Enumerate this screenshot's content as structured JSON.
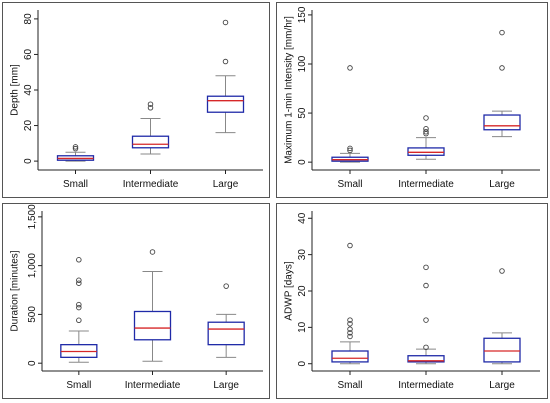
{
  "colors": {
    "box": "#1f2aa8",
    "median": "#d62728",
    "whisker": "#888888",
    "axis": "#222222",
    "panel_border": "#555555",
    "outlier": "#444444"
  },
  "chart_data": [
    {
      "type": "box",
      "ylabel": "Depth [mm]",
      "categories": [
        "Small",
        "Intermediate",
        "Large"
      ],
      "ylim": [
        -5,
        85
      ],
      "yticks": [
        0,
        20,
        40,
        60,
        80
      ],
      "ytick_labels": [
        "0",
        "20",
        "40",
        "60",
        "80"
      ],
      "boxes": [
        {
          "category": "Small",
          "low": 0,
          "q1": 0.5,
          "median": 1.5,
          "q3": 3,
          "high": 5,
          "outliers": [
            7,
            8
          ]
        },
        {
          "category": "Intermediate",
          "low": 4,
          "q1": 7.5,
          "median": 9.5,
          "q3": 14,
          "high": 24,
          "outliers": [
            30,
            32
          ]
        },
        {
          "category": "Large",
          "low": 16,
          "q1": 27.5,
          "median": 34,
          "q3": 36.5,
          "high": 48,
          "outliers": [
            56,
            78
          ]
        }
      ]
    },
    {
      "type": "box",
      "ylabel": "Maximum 1-min Intensity [mm/hr]",
      "categories": [
        "Small",
        "Intermediate",
        "Large"
      ],
      "ylim": [
        -8,
        155
      ],
      "yticks": [
        0,
        50,
        100,
        150
      ],
      "ytick_labels": [
        "0",
        "50",
        "100",
        "150"
      ],
      "boxes": [
        {
          "category": "Small",
          "low": 0,
          "q1": 1,
          "median": 2.5,
          "q3": 5,
          "high": 9,
          "outliers": [
            12,
            14,
            96
          ]
        },
        {
          "category": "Intermediate",
          "low": 3,
          "q1": 7,
          "median": 10,
          "q3": 14.5,
          "high": 25,
          "outliers": [
            29,
            31,
            34,
            45
          ]
        },
        {
          "category": "Large",
          "low": 26,
          "q1": 33,
          "median": 37,
          "q3": 48,
          "high": 52,
          "outliers": [
            96,
            132
          ]
        }
      ]
    },
    {
      "type": "box",
      "ylabel": "Duration [minutes]",
      "categories": [
        "Small",
        "Intermediate",
        "Large"
      ],
      "ylim": [
        -80,
        1560
      ],
      "yticks": [
        0,
        500,
        1000,
        1500
      ],
      "ytick_labels": [
        "0",
        "500",
        "1,000",
        "1,500"
      ],
      "boxes": [
        {
          "category": "Small",
          "low": 10,
          "q1": 60,
          "median": 120,
          "q3": 190,
          "high": 330,
          "outliers": [
            440,
            570,
            600,
            820,
            850,
            1060
          ]
        },
        {
          "category": "Intermediate",
          "low": 20,
          "q1": 240,
          "median": 360,
          "q3": 530,
          "high": 940,
          "outliers": [
            1140
          ]
        },
        {
          "category": "Large",
          "low": 60,
          "q1": 190,
          "median": 350,
          "q3": 420,
          "high": 500,
          "outliers": [
            790
          ]
        }
      ]
    },
    {
      "type": "box",
      "ylabel": "ADWP [days]",
      "categories": [
        "Small",
        "Intermediate",
        "Large"
      ],
      "ylim": [
        -2,
        42
      ],
      "yticks": [
        0,
        10,
        20,
        30,
        40
      ],
      "ytick_labels": [
        "0",
        "10",
        "20",
        "30",
        "40"
      ],
      "boxes": [
        {
          "category": "Small",
          "low": 0,
          "q1": 0.5,
          "median": 1.5,
          "q3": 3.5,
          "high": 6,
          "outliers": [
            7.5,
            8.5,
            9.5,
            11,
            12,
            32.5
          ]
        },
        {
          "category": "Intermediate",
          "low": 0,
          "q1": 0.5,
          "median": 0.8,
          "q3": 2.2,
          "high": 4,
          "outliers": [
            4.5,
            12,
            21.5,
            26.5
          ]
        },
        {
          "category": "Large",
          "low": 0,
          "q1": 0.5,
          "median": 3.5,
          "q3": 7,
          "high": 8.5,
          "outliers": [
            25.5
          ]
        }
      ]
    }
  ]
}
